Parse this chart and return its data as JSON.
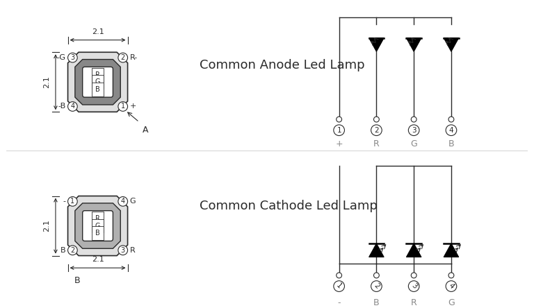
{
  "bg_color": "#ffffff",
  "line_color": "#2a2a2a",
  "title_anode": "Common Anode Led Lamp",
  "title_cathode": "Common Cathode Led Lamp",
  "title_fontsize": 13,
  "dim_label": "2.1",
  "anode_pins": [
    "+",
    "R",
    "G",
    "B"
  ],
  "cathode_pins": [
    "-",
    "B",
    "R",
    "G"
  ],
  "pkg_outer_color": "#d0d0d0",
  "pkg_inner_color": "#888888",
  "pkg_win_color": "#ffffff",
  "pkg_inner_color2": "#b0b0b0"
}
